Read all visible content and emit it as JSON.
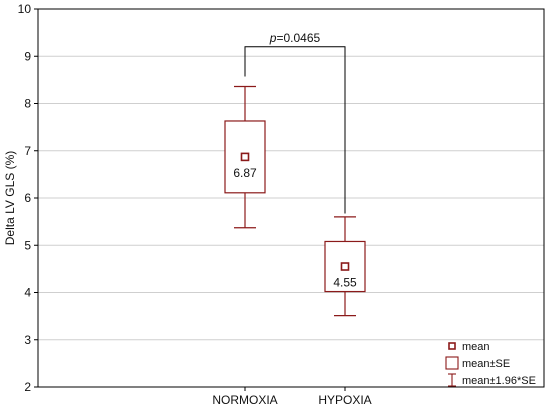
{
  "chart_data": {
    "type": "box",
    "categories": [
      "NORMOXIA",
      "HYPOXIA"
    ],
    "ylabel": "Delta LV GLS (%)",
    "ylim": [
      2,
      10
    ],
    "yticks": [
      2,
      3,
      4,
      5,
      6,
      7,
      8,
      9,
      10
    ],
    "grid": true,
    "groups": [
      {
        "category": "NORMOXIA",
        "mean": 6.87,
        "mean_label": "6.87",
        "se_low": 6.11,
        "se_high": 7.63,
        "ci_low": 5.37,
        "ci_high": 8.36
      },
      {
        "category": "HYPOXIA",
        "mean": 4.55,
        "mean_label": "4.55",
        "se_low": 4.02,
        "se_high": 5.08,
        "ci_low": 3.51,
        "ci_high": 5.6
      }
    ],
    "annotation": {
      "p_symbol": "p",
      "p_text": "=0.0465",
      "bracket_y": 9.2
    },
    "legend": {
      "placement": "bottom-right",
      "items": [
        {
          "symbol": "square-marker",
          "label": "mean"
        },
        {
          "symbol": "box",
          "label": "mean±SE"
        },
        {
          "symbol": "whisker",
          "label": "mean±1.96*SE"
        }
      ]
    },
    "colors": {
      "series": "#8b1a1a",
      "grid": "#cfcfcf",
      "axis": "#000000",
      "bracket": "#000000"
    }
  }
}
